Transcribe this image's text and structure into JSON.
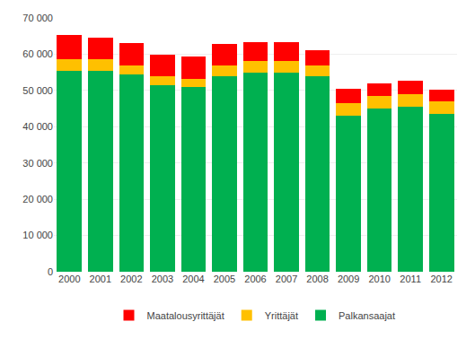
{
  "chart_data": {
    "type": "bar",
    "stacked": true,
    "categories": [
      "2000",
      "2001",
      "2002",
      "2003",
      "2004",
      "2005",
      "2006",
      "2007",
      "2008",
      "2009",
      "2010",
      "2011",
      "2012"
    ],
    "series": [
      {
        "name": "Palkansaajat",
        "color": "#00B050",
        "values": [
          55500,
          55500,
          54500,
          51500,
          51000,
          54000,
          55000,
          55000,
          53800,
          43000,
          45000,
          45500,
          43500
        ]
      },
      {
        "name": "Yrittäjät",
        "color": "#FFC000",
        "values": [
          3200,
          3000,
          2500,
          2300,
          2300,
          3000,
          3200,
          3200,
          3000,
          3500,
          3500,
          3500,
          3500
        ]
      },
      {
        "name": "Maatalousyrittäjät",
        "color": "#FF0000",
        "values": [
          6500,
          6000,
          6000,
          6000,
          6000,
          5800,
          5000,
          5000,
          4200,
          4000,
          3500,
          3800,
          3200
        ]
      }
    ],
    "ylim": [
      0,
      70000
    ],
    "yticks": [
      0,
      {
        "value": 10000,
        "label": "10 000"
      },
      {
        "value": 20000,
        "label": "20 000"
      },
      {
        "value": 30000,
        "label": "30 000"
      },
      {
        "value": 40000,
        "label": "40 000"
      },
      {
        "value": 50000,
        "label": "50 000"
      },
      {
        "value": 60000,
        "label": "60 000"
      },
      {
        "value": 70000,
        "label": "70 000"
      }
    ],
    "grid": true,
    "legend": "bottom"
  }
}
